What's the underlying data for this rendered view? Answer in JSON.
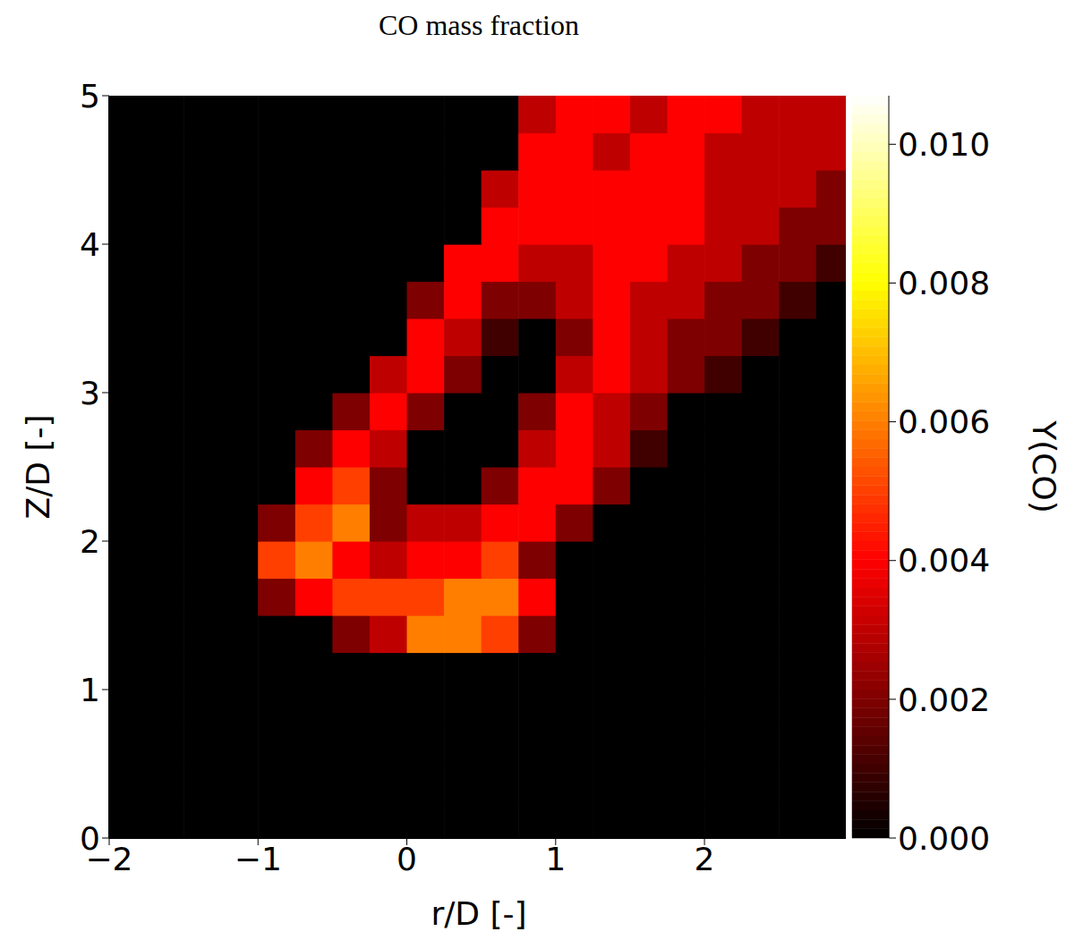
{
  "chart_data": {
    "type": "heatmap",
    "title": "CO mass fraction",
    "x_label": "r/D [-]",
    "y_label": "Z/D [-]",
    "color": "hot",
    "xlim": [
      -2,
      2.95
    ],
    "xticks": [
      {
        "value": -2,
        "label": "−2"
      },
      {
        "value": -1,
        "label": "−1"
      },
      0,
      1,
      2
    ],
    "ylim": [
      0,
      5
    ],
    "yticks": [
      0,
      1,
      2,
      3,
      4,
      5
    ],
    "x": [
      -1.875,
      -1.625,
      -1.375,
      -1.125,
      -0.875,
      -0.625,
      -0.375,
      -0.125,
      0.125,
      0.375,
      0.625,
      0.875,
      1.125,
      1.375,
      1.625,
      1.875,
      2.125,
      2.375,
      2.625,
      2.875
    ],
    "y": [
      0.125,
      0.375,
      0.625,
      0.875,
      1.125,
      1.375,
      1.625,
      1.875,
      2.125,
      2.375,
      2.625,
      2.875,
      3.125,
      3.375,
      3.625,
      3.875,
      4.125,
      4.375,
      4.625,
      4.875
    ],
    "cells": [
      [
        0,
        0,
        0,
        0,
        0,
        0,
        0,
        0,
        0,
        0,
        0,
        0,
        0,
        0,
        0,
        0,
        0,
        0,
        0,
        0
      ],
      [
        0,
        0,
        0,
        0,
        0,
        0,
        0,
        0,
        0,
        0,
        0,
        0,
        0,
        0,
        0,
        0,
        0,
        0,
        0,
        0
      ],
      [
        0,
        0,
        0,
        0,
        0,
        0,
        0,
        0,
        0,
        0,
        0,
        0,
        0,
        0,
        0,
        0,
        0,
        0,
        0,
        0
      ],
      [
        0,
        0,
        0,
        0,
        0,
        0,
        0,
        0,
        0,
        0,
        0,
        0,
        0,
        0,
        0,
        0,
        0,
        0,
        0,
        0
      ],
      [
        0,
        0,
        0,
        0,
        0,
        0,
        0,
        0,
        0,
        0,
        0,
        0,
        0,
        0,
        0,
        0,
        0,
        0,
        0,
        0
      ],
      [
        0,
        0,
        0,
        0,
        0,
        0,
        0.002,
        0.003,
        0.006,
        0.006,
        0.005,
        0.002,
        0,
        0,
        0,
        0,
        0,
        0,
        0,
        0
      ],
      [
        0,
        0,
        0,
        0,
        0.002,
        0.004,
        0.005,
        0.005,
        0.005,
        0.006,
        0.006,
        0.004,
        0,
        0,
        0,
        0,
        0,
        0,
        0,
        0
      ],
      [
        0,
        0,
        0,
        0,
        0.005,
        0.006,
        0.004,
        0.003,
        0.004,
        0.004,
        0.005,
        0.002,
        0,
        0,
        0,
        0,
        0,
        0,
        0,
        0
      ],
      [
        0,
        0,
        0,
        0,
        0.002,
        0.005,
        0.006,
        0.002,
        0.003,
        0.003,
        0.004,
        0.004,
        0.002,
        0,
        0,
        0,
        0,
        0,
        0,
        0
      ],
      [
        0,
        0,
        0,
        0,
        0,
        0.004,
        0.005,
        0.002,
        0,
        0,
        0.002,
        0.004,
        0.004,
        0.002,
        0,
        0,
        0,
        0,
        0,
        0
      ],
      [
        0,
        0,
        0,
        0,
        0,
        0.002,
        0.004,
        0.003,
        0,
        0,
        0,
        0.003,
        0.004,
        0.003,
        0.001,
        0,
        0,
        0,
        0,
        0
      ],
      [
        0,
        0,
        0,
        0,
        0,
        0,
        0.002,
        0.004,
        0.002,
        0,
        0,
        0.002,
        0.004,
        0.003,
        0.002,
        0,
        0,
        0,
        0,
        0
      ],
      [
        0,
        0,
        0,
        0,
        0,
        0,
        0,
        0.003,
        0.004,
        0.002,
        0,
        0,
        0.003,
        0.004,
        0.003,
        0.002,
        0.001,
        0,
        0,
        0
      ],
      [
        0,
        0,
        0,
        0,
        0,
        0,
        0,
        0,
        0.004,
        0.003,
        0.001,
        0,
        0.002,
        0.004,
        0.003,
        0.002,
        0.002,
        0.001,
        0,
        0
      ],
      [
        0,
        0,
        0,
        0,
        0,
        0,
        0,
        0,
        0.002,
        0.004,
        0.002,
        0.002,
        0.003,
        0.004,
        0.003,
        0.003,
        0.002,
        0.002,
        0.001,
        0
      ],
      [
        0,
        0,
        0,
        0,
        0,
        0,
        0,
        0,
        0,
        0.004,
        0.004,
        0.003,
        0.003,
        0.004,
        0.004,
        0.003,
        0.003,
        0.002,
        0.002,
        0.001
      ],
      [
        0,
        0,
        0,
        0,
        0,
        0,
        0,
        0,
        0,
        0,
        0.004,
        0.004,
        0.004,
        0.004,
        0.004,
        0.004,
        0.003,
        0.003,
        0.002,
        0.002
      ],
      [
        0,
        0,
        0,
        0,
        0,
        0,
        0,
        0,
        0,
        0,
        0.003,
        0.004,
        0.004,
        0.004,
        0.004,
        0.004,
        0.003,
        0.003,
        0.003,
        0.002
      ],
      [
        0,
        0,
        0,
        0,
        0,
        0,
        0,
        0,
        0,
        0,
        0,
        0.004,
        0.004,
        0.003,
        0.004,
        0.004,
        0.003,
        0.003,
        0.003,
        0.003
      ],
      [
        0,
        0,
        0,
        0,
        0,
        0,
        0,
        0,
        0,
        0,
        0,
        0.003,
        0.004,
        0.004,
        0.003,
        0.004,
        0.004,
        0.003,
        0.003,
        0.003
      ]
    ],
    "colorbar": {
      "label": "Y(CO)",
      "range": [
        0,
        0.0107
      ],
      "ticks": [
        {
          "value": 0,
          "label": "0.000"
        },
        {
          "value": 0.002,
          "label": "0.002"
        },
        {
          "value": 0.004,
          "label": "0.004"
        },
        {
          "value": 0.006,
          "label": "0.006"
        },
        {
          "value": 0.008,
          "label": "0.008"
        },
        {
          "value": 0.01,
          "label": "0.010"
        }
      ]
    }
  }
}
